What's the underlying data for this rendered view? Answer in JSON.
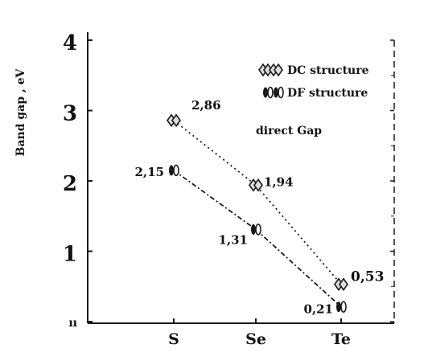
{
  "chart_data": {
    "type": "line",
    "ylabel": "Band gap , eV",
    "categories": [
      "S",
      "Se",
      "Te"
    ],
    "yticks": [
      "ıı",
      "1",
      "2",
      "3",
      "4"
    ],
    "ylim": [
      0,
      4
    ],
    "series": [
      {
        "name": "DC structure",
        "values": [
          2.86,
          1.94,
          0.53
        ],
        "labels": [
          "2,86",
          "1,94",
          "0,53"
        ],
        "marker": "double-diamond",
        "line_style": "dotted"
      },
      {
        "name": "DF structure",
        "values": [
          2.15,
          1.31,
          0.21
        ],
        "labels": [
          "2,15",
          "1,31",
          "0,21"
        ],
        "marker": "double-oval",
        "line_style": "dash-dot"
      }
    ],
    "annotation": "direct Gap",
    "legend_position": "top-right",
    "grid": false
  },
  "colors": {
    "ink": "#1a1a1a",
    "background": "#ffffff"
  }
}
